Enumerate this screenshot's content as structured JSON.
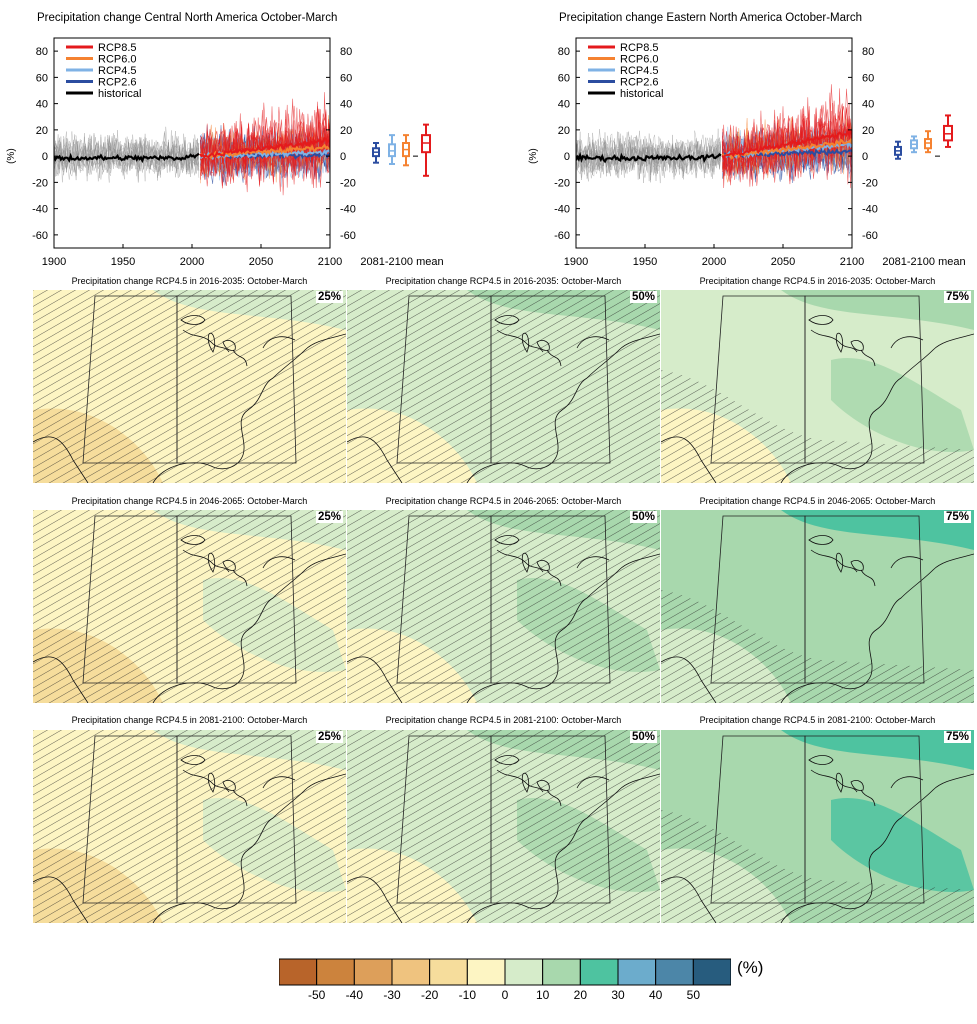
{
  "timeseries": [
    {
      "title": "Precipitation change Central North America October-March",
      "ylabel": "(%)",
      "mean_label": "2081-2100 mean",
      "xlim": [
        1900,
        2100
      ],
      "ylim": [
        -70,
        90
      ],
      "xticks": [
        1900,
        1950,
        2000,
        2050,
        2100
      ],
      "yticks": [
        -60,
        -40,
        -20,
        0,
        20,
        40,
        60,
        80
      ],
      "legend": [
        "RCP8.5",
        "RCP6.0",
        "RCP4.5",
        "RCP2.6",
        "historical"
      ],
      "scenario_mean_2100": {
        "RCP8.5": 12,
        "RCP6.0": 7,
        "RCP4.5": 3,
        "RCP2.6": 1
      },
      "boxes": [
        {
          "name": "RCP2.6",
          "median": 3,
          "q1": 0,
          "q3": 6,
          "min": -5,
          "max": 10
        },
        {
          "name": "RCP4.5",
          "median": 4,
          "q1": 0,
          "q3": 9,
          "min": -6,
          "max": 16
        },
        {
          "name": "RCP6.0",
          "median": 5,
          "q1": 0,
          "q3": 10,
          "min": -7,
          "max": 16
        },
        {
          "name": "RCP8.5",
          "median": 10,
          "q1": 3,
          "q3": 16,
          "min": -15,
          "max": 24
        }
      ]
    },
    {
      "title": "Precipitation change Eastern North America October-March",
      "ylabel": "(%)",
      "mean_label": "2081-2100 mean",
      "xlim": [
        1900,
        2100
      ],
      "ylim": [
        -70,
        90
      ],
      "xticks": [
        1900,
        1950,
        2000,
        2050,
        2100
      ],
      "yticks": [
        -60,
        -40,
        -20,
        0,
        20,
        40,
        60,
        80
      ],
      "legend": [
        "RCP8.5",
        "RCP6.0",
        "RCP4.5",
        "RCP2.6",
        "historical"
      ],
      "scenario_mean_2100": {
        "RCP8.5": 18,
        "RCP6.0": 11,
        "RCP4.5": 9,
        "RCP2.6": 4
      },
      "boxes": [
        {
          "name": "RCP2.6",
          "median": 4,
          "q1": 1,
          "q3": 7,
          "min": -2,
          "max": 11
        },
        {
          "name": "RCP4.5",
          "median": 9,
          "q1": 6,
          "q3": 12,
          "min": 3,
          "max": 15
        },
        {
          "name": "RCP6.0",
          "median": 10,
          "q1": 6,
          "q3": 13,
          "min": 3,
          "max": 19
        },
        {
          "name": "RCP8.5",
          "median": 17,
          "q1": 12,
          "q3": 23,
          "min": 7,
          "max": 31
        }
      ]
    }
  ],
  "scenario_colors": {
    "RCP8.5": "#e41a1c",
    "RCP6.0": "#f58231",
    "RCP4.5": "#7fb2e5",
    "RCP2.6": "#2b4da0",
    "historical": "#000000"
  },
  "maps": {
    "rows": [
      {
        "title": "Precipitation change RCP4.5 in 2016-2035: October-March",
        "levels": [
          -8,
          2,
          6
        ]
      },
      {
        "title": "Precipitation change RCP4.5 in 2046-2065: October-March",
        "levels": [
          -4,
          6,
          12
        ]
      },
      {
        "title": "Precipitation change RCP4.5 in 2081-2100: October-March",
        "levels": [
          -2,
          8,
          16
        ]
      }
    ],
    "percentiles": [
      "25%",
      "50%",
      "75%"
    ]
  },
  "colorbar": {
    "unit": "(%)",
    "tick_labels": [
      "-50",
      "-40",
      "-30",
      "-20",
      "-10",
      "0",
      "10",
      "20",
      "30",
      "40",
      "50"
    ],
    "colors": [
      "#b8642a",
      "#cc833d",
      "#dd9f5a",
      "#efc37f",
      "#f6dd9c",
      "#fdf5c3",
      "#d6ecca",
      "#a8d8ad",
      "#4ec3a0",
      "#6caccc",
      "#4c86a8",
      "#275c7e"
    ]
  }
}
